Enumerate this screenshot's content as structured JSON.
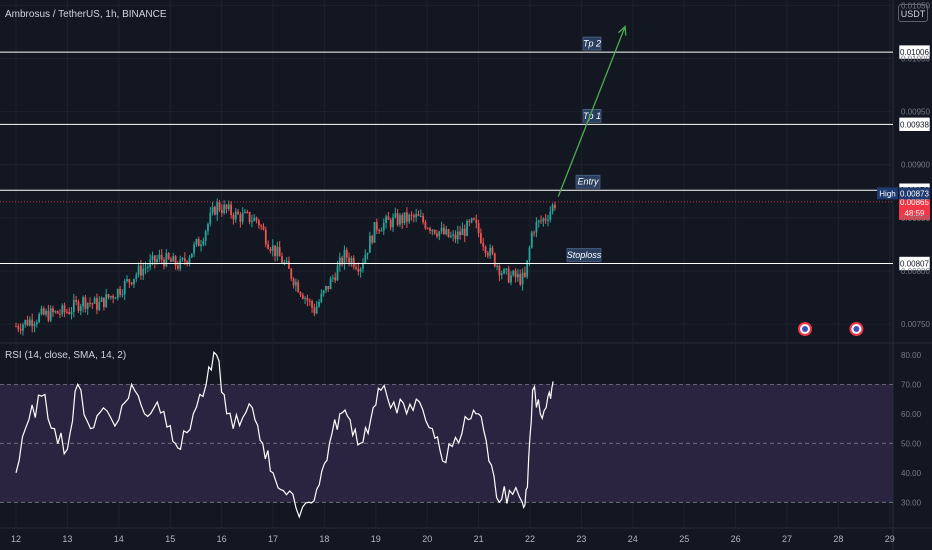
{
  "header": {
    "symbol": "Ambrosus / TetherUS, 1h, BINANCE",
    "currency_button": "USDT"
  },
  "rsi_panel": {
    "title": "RSI (14, close, SMA, 14, 2)"
  },
  "colors": {
    "background": "#131722",
    "up": "#26a69a",
    "down": "#ef5350",
    "rsi_line": "#ffffff",
    "rsi_band": "#2a2440",
    "arrow": "#4caf50",
    "current_price": "#f23645"
  },
  "chart_data": [
    {
      "type": "candlestick",
      "x_ticks": [
        "12",
        "13",
        "14",
        "15",
        "16",
        "17",
        "18",
        "19",
        "20",
        "21",
        "22",
        "23",
        "24",
        "25",
        "26",
        "27",
        "28",
        "29"
      ],
      "y_ticks": [
        0.0075,
        0.008,
        0.0085,
        0.009,
        0.0095,
        0.01,
        0.0105
      ],
      "y_tick_labels": [
        "0.00750",
        "0.00800",
        "0.00850",
        "0.00900",
        "0.00950",
        "0.01000",
        "0.01050"
      ],
      "ylim": [
        0.00735,
        0.01055
      ],
      "close_path": [
        {
          "x": 12.0,
          "y": 0.00748
        },
        {
          "x": 12.5,
          "y": 0.00758
        },
        {
          "x": 13.0,
          "y": 0.00762
        },
        {
          "x": 13.3,
          "y": 0.00772
        },
        {
          "x": 13.6,
          "y": 0.00768
        },
        {
          "x": 14.0,
          "y": 0.00782
        },
        {
          "x": 14.4,
          "y": 0.008
        },
        {
          "x": 14.8,
          "y": 0.00812
        },
        {
          "x": 15.2,
          "y": 0.00805
        },
        {
          "x": 15.6,
          "y": 0.0083
        },
        {
          "x": 15.9,
          "y": 0.00862
        },
        {
          "x": 16.3,
          "y": 0.00852
        },
        {
          "x": 16.7,
          "y": 0.00848
        },
        {
          "x": 16.9,
          "y": 0.00828
        },
        {
          "x": 17.2,
          "y": 0.00808
        },
        {
          "x": 17.5,
          "y": 0.00785
        },
        {
          "x": 17.8,
          "y": 0.00763
        },
        {
          "x": 18.1,
          "y": 0.00788
        },
        {
          "x": 18.4,
          "y": 0.00815
        },
        {
          "x": 18.7,
          "y": 0.00805
        },
        {
          "x": 19.0,
          "y": 0.00842
        },
        {
          "x": 19.4,
          "y": 0.00848
        },
        {
          "x": 19.8,
          "y": 0.0085
        },
        {
          "x": 20.2,
          "y": 0.00838
        },
        {
          "x": 20.5,
          "y": 0.0083
        },
        {
          "x": 20.9,
          "y": 0.00845
        },
        {
          "x": 21.2,
          "y": 0.00818
        },
        {
          "x": 21.5,
          "y": 0.00796
        },
        {
          "x": 21.9,
          "y": 0.00792
        },
        {
          "x": 22.05,
          "y": 0.0084
        },
        {
          "x": 22.3,
          "y": 0.0085
        },
        {
          "x": 22.5,
          "y": 0.00865
        }
      ],
      "levels": [
        {
          "name": "Tp 2",
          "value": 0.01006,
          "label": "0.01006"
        },
        {
          "name": "Tp 1",
          "value": 0.00938,
          "label": "0.00938"
        },
        {
          "name": "Entry",
          "value": 0.00876,
          "label": "0.00876"
        },
        {
          "name": "Stoploss",
          "value": 0.00807,
          "label": "0.00807"
        }
      ],
      "high": {
        "label": "High",
        "value": 0.00873,
        "value_label": "0.00873"
      },
      "current_price": {
        "value": 0.00865,
        "label": "0.00865",
        "countdown": "48:59"
      },
      "projection_arrow": {
        "from": {
          "x": 22.55,
          "y": 0.0087
        },
        "to": {
          "x": 23.85,
          "y": 0.0103
        }
      },
      "event_markers": [
        {
          "x": 27.35
        },
        {
          "x": 28.35
        }
      ]
    },
    {
      "type": "line",
      "name": "RSI",
      "y_ticks": [
        30,
        40,
        50,
        60,
        70,
        80
      ],
      "y_tick_labels": [
        "30.00",
        "40.00",
        "50.00",
        "60.00",
        "70.00",
        "80.00"
      ],
      "ylim": [
        24,
        83
      ],
      "bands": {
        "upper": 70,
        "middle": 50,
        "lower": 30
      },
      "points": [
        {
          "x": 12.0,
          "y": 40
        },
        {
          "x": 12.25,
          "y": 58
        },
        {
          "x": 12.5,
          "y": 66
        },
        {
          "x": 12.75,
          "y": 55
        },
        {
          "x": 13.0,
          "y": 48
        },
        {
          "x": 13.2,
          "y": 70
        },
        {
          "x": 13.45,
          "y": 55
        },
        {
          "x": 13.7,
          "y": 62
        },
        {
          "x": 14.0,
          "y": 58
        },
        {
          "x": 14.25,
          "y": 70
        },
        {
          "x": 14.5,
          "y": 60
        },
        {
          "x": 14.75,
          "y": 64
        },
        {
          "x": 15.0,
          "y": 56
        },
        {
          "x": 15.2,
          "y": 48
        },
        {
          "x": 15.45,
          "y": 60
        },
        {
          "x": 15.7,
          "y": 70
        },
        {
          "x": 15.9,
          "y": 80
        },
        {
          "x": 16.1,
          "y": 60
        },
        {
          "x": 16.35,
          "y": 56
        },
        {
          "x": 16.6,
          "y": 62
        },
        {
          "x": 16.8,
          "y": 50
        },
        {
          "x": 17.0,
          "y": 40
        },
        {
          "x": 17.2,
          "y": 34
        },
        {
          "x": 17.45,
          "y": 28
        },
        {
          "x": 17.7,
          "y": 30
        },
        {
          "x": 17.9,
          "y": 36
        },
        {
          "x": 18.1,
          "y": 50
        },
        {
          "x": 18.3,
          "y": 60
        },
        {
          "x": 18.5,
          "y": 58
        },
        {
          "x": 18.7,
          "y": 50
        },
        {
          "x": 18.9,
          "y": 58
        },
        {
          "x": 19.1,
          "y": 68
        },
        {
          "x": 19.35,
          "y": 64
        },
        {
          "x": 19.6,
          "y": 60
        },
        {
          "x": 19.85,
          "y": 64
        },
        {
          "x": 20.1,
          "y": 55
        },
        {
          "x": 20.3,
          "y": 44
        },
        {
          "x": 20.55,
          "y": 52
        },
        {
          "x": 20.8,
          "y": 58
        },
        {
          "x": 21.0,
          "y": 60
        },
        {
          "x": 21.2,
          "y": 44
        },
        {
          "x": 21.4,
          "y": 30
        },
        {
          "x": 21.6,
          "y": 34
        },
        {
          "x": 21.85,
          "y": 30
        },
        {
          "x": 21.95,
          "y": 35
        },
        {
          "x": 22.05,
          "y": 68
        },
        {
          "x": 22.2,
          "y": 60
        },
        {
          "x": 22.35,
          "y": 66
        },
        {
          "x": 22.45,
          "y": 71
        }
      ]
    }
  ]
}
